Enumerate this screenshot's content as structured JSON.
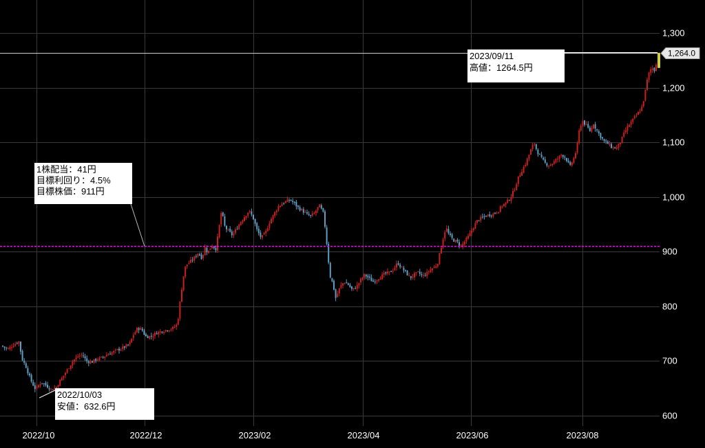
{
  "chart_data": {
    "type": "candlestick",
    "x_labels": [
      "2022/10",
      "2022/12",
      "2023/02",
      "2023/04",
      "2023/06",
      "2023/08"
    ],
    "y_ticks": [
      600,
      700,
      800,
      900,
      1000,
      1100,
      1200,
      1300
    ],
    "y_tick_labels": [
      "600",
      "700",
      "800",
      "900",
      "1,000",
      "1,100",
      "1,200",
      "1,300"
    ],
    "ylim": [
      568,
      1331
    ],
    "grid": true,
    "colors": {
      "up": "#cc1f1f",
      "down": "#5e9ec4",
      "grid": "#3a3a3a",
      "target_line": "#ff00ff",
      "price_line": "#cfcfcf",
      "last_price_marker": "#d4cf2a"
    },
    "target_line_value": 911,
    "current_price_line": 1264,
    "last_price_label": "1,264.0",
    "annotations": {
      "target": {
        "lines": [
          "1株配当：41円",
          "目標利回り：4.5%",
          "目標株価：911円"
        ]
      },
      "high": {
        "lines": [
          "2023/09/11",
          "高値：1264.5円"
        ],
        "value": 1264.5
      },
      "low": {
        "lines": [
          "2022/10/03",
          "安値：632.6円"
        ],
        "value": 632.6
      }
    },
    "waypoints": [
      [
        2,
        728
      ],
      [
        12,
        722
      ],
      [
        20,
        730
      ],
      [
        28,
        736
      ],
      [
        32,
        705
      ],
      [
        38,
        690
      ],
      [
        45,
        665
      ],
      [
        52,
        648
      ],
      [
        60,
        662
      ],
      [
        68,
        655
      ],
      [
        75,
        648
      ],
      [
        82,
        652
      ],
      [
        88,
        665
      ],
      [
        94,
        676
      ],
      [
        100,
        688
      ],
      [
        106,
        700
      ],
      [
        113,
        708
      ],
      [
        120,
        712
      ],
      [
        126,
        700
      ],
      [
        133,
        698
      ],
      [
        140,
        703
      ],
      [
        148,
        706
      ],
      [
        156,
        712
      ],
      [
        164,
        716
      ],
      [
        172,
        721
      ],
      [
        180,
        725
      ],
      [
        188,
        730
      ],
      [
        194,
        748
      ],
      [
        200,
        760
      ],
      [
        206,
        758
      ],
      [
        212,
        745
      ],
      [
        220,
        745
      ],
      [
        228,
        752
      ],
      [
        236,
        755
      ],
      [
        244,
        758
      ],
      [
        252,
        760
      ],
      [
        258,
        768
      ],
      [
        262,
        810
      ],
      [
        266,
        850
      ],
      [
        270,
        875
      ],
      [
        275,
        880
      ],
      [
        282,
        888
      ],
      [
        288,
        898
      ],
      [
        294,
        888
      ],
      [
        298,
        908
      ],
      [
        302,
        898
      ],
      [
        308,
        912
      ],
      [
        314,
        905
      ],
      [
        318,
        940
      ],
      [
        322,
        975
      ],
      [
        327,
        945
      ],
      [
        332,
        938
      ],
      [
        338,
        930
      ],
      [
        344,
        942
      ],
      [
        350,
        955
      ],
      [
        356,
        965
      ],
      [
        362,
        975
      ],
      [
        368,
        962
      ],
      [
        374,
        938
      ],
      [
        380,
        925
      ],
      [
        386,
        935
      ],
      [
        392,
        955
      ],
      [
        398,
        968
      ],
      [
        404,
        982
      ],
      [
        410,
        988
      ],
      [
        416,
        992
      ],
      [
        422,
        995
      ],
      [
        428,
        988
      ],
      [
        434,
        980
      ],
      [
        440,
        975
      ],
      [
        446,
        968
      ],
      [
        452,
        965
      ],
      [
        458,
        972
      ],
      [
        464,
        985
      ],
      [
        470,
        970
      ],
      [
        474,
        930
      ],
      [
        476,
        898
      ],
      [
        480,
        855
      ],
      [
        484,
        840
      ],
      [
        488,
        815
      ],
      [
        494,
        835
      ],
      [
        500,
        845
      ],
      [
        506,
        840
      ],
      [
        512,
        830
      ],
      [
        518,
        836
      ],
      [
        524,
        848
      ],
      [
        530,
        858
      ],
      [
        536,
        852
      ],
      [
        542,
        845
      ],
      [
        548,
        850
      ],
      [
        554,
        855
      ],
      [
        560,
        860
      ],
      [
        566,
        862
      ],
      [
        572,
        868
      ],
      [
        578,
        880
      ],
      [
        584,
        870
      ],
      [
        590,
        862
      ],
      [
        596,
        852
      ],
      [
        602,
        858
      ],
      [
        608,
        862
      ],
      [
        614,
        855
      ],
      [
        620,
        860
      ],
      [
        626,
        868
      ],
      [
        632,
        872
      ],
      [
        636,
        880
      ],
      [
        640,
        902
      ],
      [
        644,
        925
      ],
      [
        648,
        945
      ],
      [
        652,
        932
      ],
      [
        658,
        922
      ],
      [
        664,
        918
      ],
      [
        670,
        910
      ],
      [
        676,
        920
      ],
      [
        682,
        930
      ],
      [
        688,
        945
      ],
      [
        694,
        958
      ],
      [
        700,
        962
      ],
      [
        706,
        966
      ],
      [
        712,
        968
      ],
      [
        718,
        970
      ],
      [
        724,
        975
      ],
      [
        730,
        985
      ],
      [
        736,
        990
      ],
      [
        742,
        1000
      ],
      [
        748,
        1015
      ],
      [
        752,
        1032
      ],
      [
        758,
        1048
      ],
      [
        764,
        1062
      ],
      [
        770,
        1082
      ],
      [
        776,
        1100
      ],
      [
        780,
        1085
      ],
      [
        786,
        1072
      ],
      [
        792,
        1062
      ],
      [
        798,
        1058
      ],
      [
        804,
        1063
      ],
      [
        810,
        1070
      ],
      [
        816,
        1078
      ],
      [
        822,
        1072
      ],
      [
        828,
        1055
      ],
      [
        834,
        1072
      ],
      [
        838,
        1088
      ],
      [
        842,
        1125
      ],
      [
        846,
        1140
      ],
      [
        852,
        1130
      ],
      [
        858,
        1120
      ],
      [
        862,
        1135
      ],
      [
        866,
        1125
      ],
      [
        872,
        1112
      ],
      [
        878,
        1102
      ],
      [
        884,
        1097
      ],
      [
        890,
        1090
      ],
      [
        896,
        1090
      ],
      [
        902,
        1102
      ],
      [
        908,
        1120
      ],
      [
        914,
        1132
      ],
      [
        920,
        1142
      ],
      [
        926,
        1152
      ],
      [
        932,
        1162
      ],
      [
        936,
        1182
      ],
      [
        940,
        1212
      ],
      [
        944,
        1232
      ],
      [
        948,
        1236
      ],
      [
        952,
        1230
      ],
      [
        955,
        1264
      ]
    ]
  }
}
